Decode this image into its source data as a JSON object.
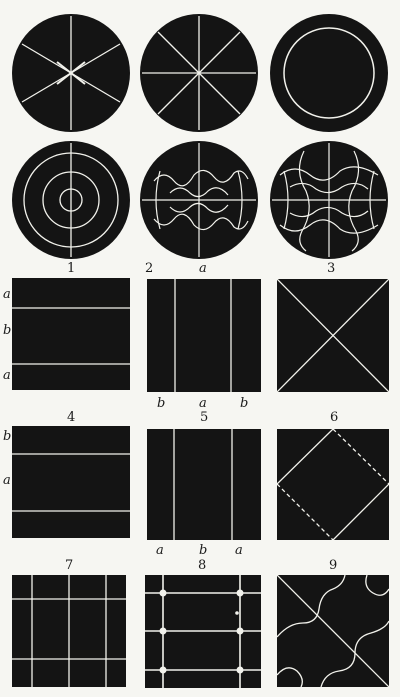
{
  "plates": {
    "p1": {
      "number": "1",
      "left_letters": [
        "a",
        "b",
        "a"
      ]
    },
    "p2": {
      "number": "2",
      "top_letter": "a",
      "bottom_letters": [
        "b",
        "a",
        "b"
      ]
    },
    "p3": {
      "number": "3"
    },
    "p4": {
      "number": "4",
      "left_letters": [
        "b",
        "a"
      ]
    },
    "p5": {
      "number": "5",
      "bottom_letters": [
        "a",
        "b",
        "a"
      ]
    },
    "p6": {
      "number": "6"
    },
    "p7": {
      "number": "7"
    },
    "p8": {
      "number": "8"
    },
    "p9": {
      "number": "9"
    }
  },
  "colors": {
    "plate": "#141414",
    "line": "#f2f2ec",
    "page": "#f6f6f2"
  }
}
